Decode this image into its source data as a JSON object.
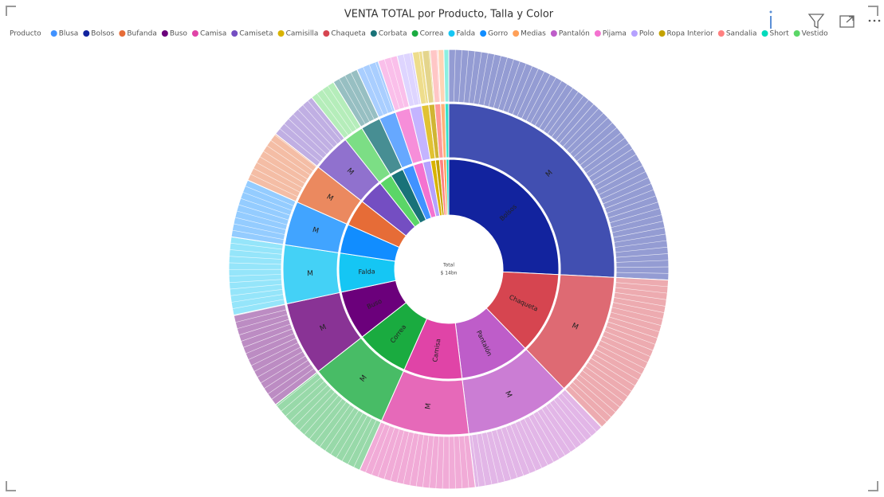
{
  "chart_data": {
    "type": "sunburst",
    "title": "VENTA TOTAL por Producto, Talla y Color",
    "legend_title": "Producto",
    "legend": [
      "Blusa",
      "Bolsos",
      "Bufanda",
      "Buso",
      "Camisa",
      "Camiseta",
      "Camisilla",
      "Chaqueta",
      "Corbata",
      "Correa",
      "Falda",
      "Gorro",
      "Medias",
      "Pantalón",
      "Pijama",
      "Polo",
      "Ropa Interior",
      "Sandalia",
      "Short",
      "Vestido"
    ],
    "center": {
      "name": "Total",
      "value": 14,
      "value_label": "$ 14bn"
    },
    "series": [
      {
        "name": "Bolsos",
        "color": "#12239e",
        "value": 3.61,
        "sizes": [
          {
            "name": "M",
            "value": 3.61
          }
        ]
      },
      {
        "name": "Chaqueta",
        "color": "#d64550",
        "value": 1.68,
        "sizes": [
          {
            "name": "M",
            "value": 1.68
          }
        ]
      },
      {
        "name": "Pantalón",
        "color": "#be5dc9",
        "value": 1.44,
        "sizes": [
          {
            "name": "M",
            "value": 1.44
          }
        ]
      },
      {
        "name": "Camisa",
        "color": "#e044a7",
        "value": 1.2,
        "sizes": [
          {
            "name": "M",
            "value": 1.2
          }
        ]
      },
      {
        "name": "Correa",
        "color": "#1aab40",
        "value": 1.09,
        "sizes": [
          {
            "name": "M",
            "value": 1.09
          }
        ]
      },
      {
        "name": "Buso",
        "color": "#6b007b",
        "value": 1.01,
        "sizes": [
          {
            "name": "M",
            "value": 1.01
          }
        ]
      },
      {
        "name": "Falda",
        "color": "#15c6f4",
        "value": 0.8,
        "sizes": [
          {
            "name": "M",
            "value": 0.8
          }
        ]
      },
      {
        "name": "Gorro",
        "color": "#118dff",
        "value": 0.6,
        "sizes": [
          {
            "name": "M",
            "value": 0.6
          }
        ]
      },
      {
        "name": "Bufanda",
        "color": "#e66c37",
        "value": 0.55,
        "sizes": [
          {
            "name": "M",
            "value": 0.55
          }
        ]
      },
      {
        "name": "Camiseta",
        "color": "#744ec2",
        "value": 0.52,
        "sizes": [
          {
            "name": "M",
            "value": 0.52
          }
        ]
      },
      {
        "name": "Vestido",
        "color": "#5bd667",
        "value": 0.27,
        "sizes": [
          {
            "name": "M",
            "value": 0.27
          }
        ]
      },
      {
        "name": "Corbata",
        "color": "#197278",
        "value": 0.27,
        "sizes": [
          {
            "name": "M",
            "value": 0.27
          }
        ]
      },
      {
        "name": "Blusa",
        "color": "#4092ff",
        "value": 0.23,
        "sizes": [
          {
            "name": "M",
            "value": 0.23
          }
        ]
      },
      {
        "name": "Pijama",
        "color": "#f472d0",
        "value": 0.2,
        "sizes": [
          {
            "name": "M",
            "value": 0.2
          }
        ]
      },
      {
        "name": "Polo",
        "color": "#b5a1ff",
        "value": 0.16,
        "sizes": [
          {
            "name": "M",
            "value": 0.16
          }
        ]
      },
      {
        "name": "Camisilla",
        "color": "#d9b300",
        "value": 0.1,
        "sizes": [
          {
            "name": "M",
            "value": 0.1
          }
        ]
      },
      {
        "name": "Ropa Interior",
        "color": "#c4a200",
        "value": 0.08,
        "sizes": [
          {
            "name": "M",
            "value": 0.08
          }
        ]
      },
      {
        "name": "Sandalia",
        "color": "#ff8080",
        "value": 0.08,
        "sizes": [
          {
            "name": "M",
            "value": 0.08
          }
        ]
      },
      {
        "name": "Medias",
        "color": "#ffa058",
        "value": 0.06,
        "sizes": [
          {
            "name": "M",
            "value": 0.06
          }
        ]
      },
      {
        "name": "Short",
        "color": "#00dbbc",
        "value": 0.05,
        "sizes": [
          {
            "name": "M",
            "value": 0.05
          }
        ]
      }
    ]
  }
}
